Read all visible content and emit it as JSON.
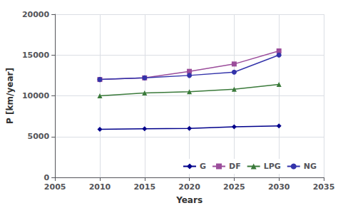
{
  "chart_data": {
    "type": "line",
    "xlabel": "Years",
    "ylabel": "P [km/year]",
    "x": [
      2010,
      2015,
      2020,
      2025,
      2030
    ],
    "series": [
      {
        "name": "G",
        "color": "#00008B",
        "marker": "diamond",
        "values": [
          5900,
          5950,
          6000,
          6200,
          6300
        ]
      },
      {
        "name": "DF",
        "color": "#9B4D9B",
        "marker": "square",
        "values": [
          12000,
          12200,
          13000,
          13900,
          15500
        ]
      },
      {
        "name": "LPG",
        "color": "#3A7A3A",
        "marker": "triangle",
        "values": [
          10000,
          10350,
          10500,
          10800,
          11400
        ]
      },
      {
        "name": "NG",
        "color": "#3333AA",
        "marker": "circle",
        "values": [
          12000,
          12200,
          12500,
          12900,
          15000
        ]
      }
    ],
    "xlim": [
      2005,
      2035
    ],
    "xticks": [
      2005,
      2010,
      2015,
      2020,
      2025,
      2030,
      2035
    ],
    "ylim": [
      0,
      20000
    ],
    "yticks": [
      0,
      5000,
      10000,
      15000,
      20000
    ],
    "grid": true,
    "legend": "lower right"
  }
}
